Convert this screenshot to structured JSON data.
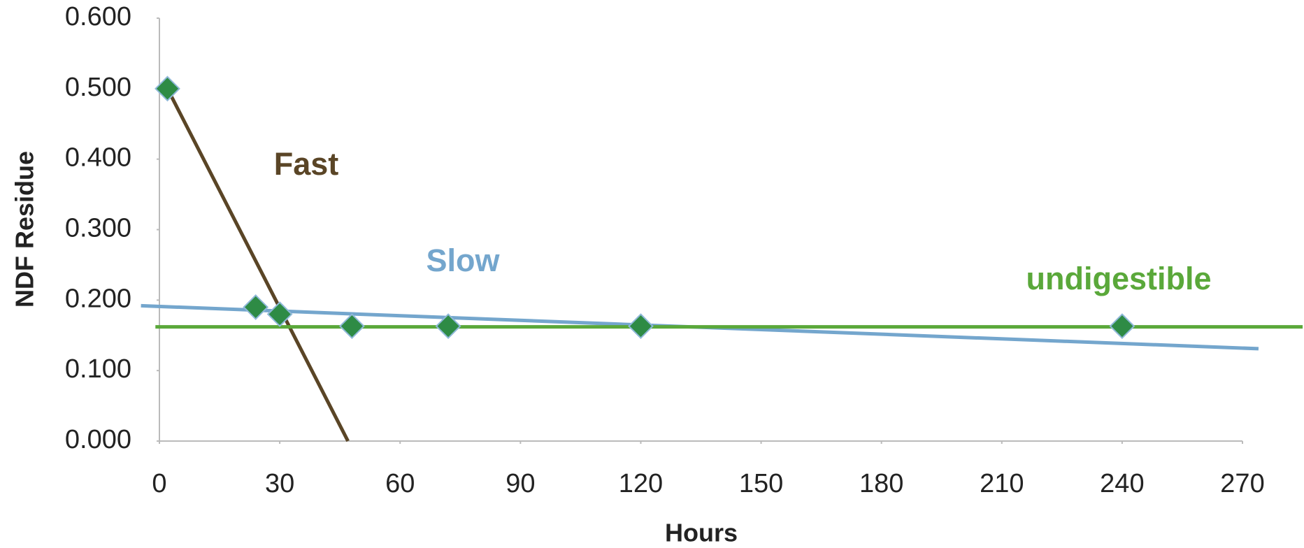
{
  "chart_data": {
    "type": "scatter",
    "x": [
      2,
      24,
      30,
      48,
      72,
      120,
      240
    ],
    "values": [
      0.5,
      0.19,
      0.18,
      0.163,
      0.163,
      0.163,
      0.163
    ],
    "color": "#2e8b45",
    "lines": [
      {
        "name": "Fast",
        "color": "#5a4526",
        "x": [
          2,
          47
        ],
        "values": [
          0.5,
          0.0
        ]
      },
      {
        "name": "Slow",
        "color": "#74a6cd",
        "x": [
          -4.6,
          274
        ],
        "values": [
          0.192,
          0.131
        ]
      },
      {
        "name": "undigestible",
        "color": "#5aa83a",
        "x": [
          -1,
          285
        ],
        "values": [
          0.162,
          0.162
        ]
      }
    ],
    "xlabel": "Hours",
    "ylabel": "NDF Residue",
    "xlim": [
      0,
      270
    ],
    "xticks": [
      0,
      30,
      60,
      90,
      120,
      150,
      180,
      210,
      240,
      270
    ],
    "ylim": [
      0,
      0.6
    ],
    "yticks": [
      {
        "value": 0,
        "label": "0.000"
      },
      {
        "value": 0.1,
        "label": "0.100"
      },
      {
        "value": 0.2,
        "label": "0.200"
      },
      {
        "value": 0.3,
        "label": "0.300"
      },
      {
        "value": 0.4,
        "label": "0.400"
      },
      {
        "value": 0.5,
        "label": "0.500"
      },
      {
        "value": 0.6,
        "label": "0.600"
      }
    ],
    "grid": false
  }
}
